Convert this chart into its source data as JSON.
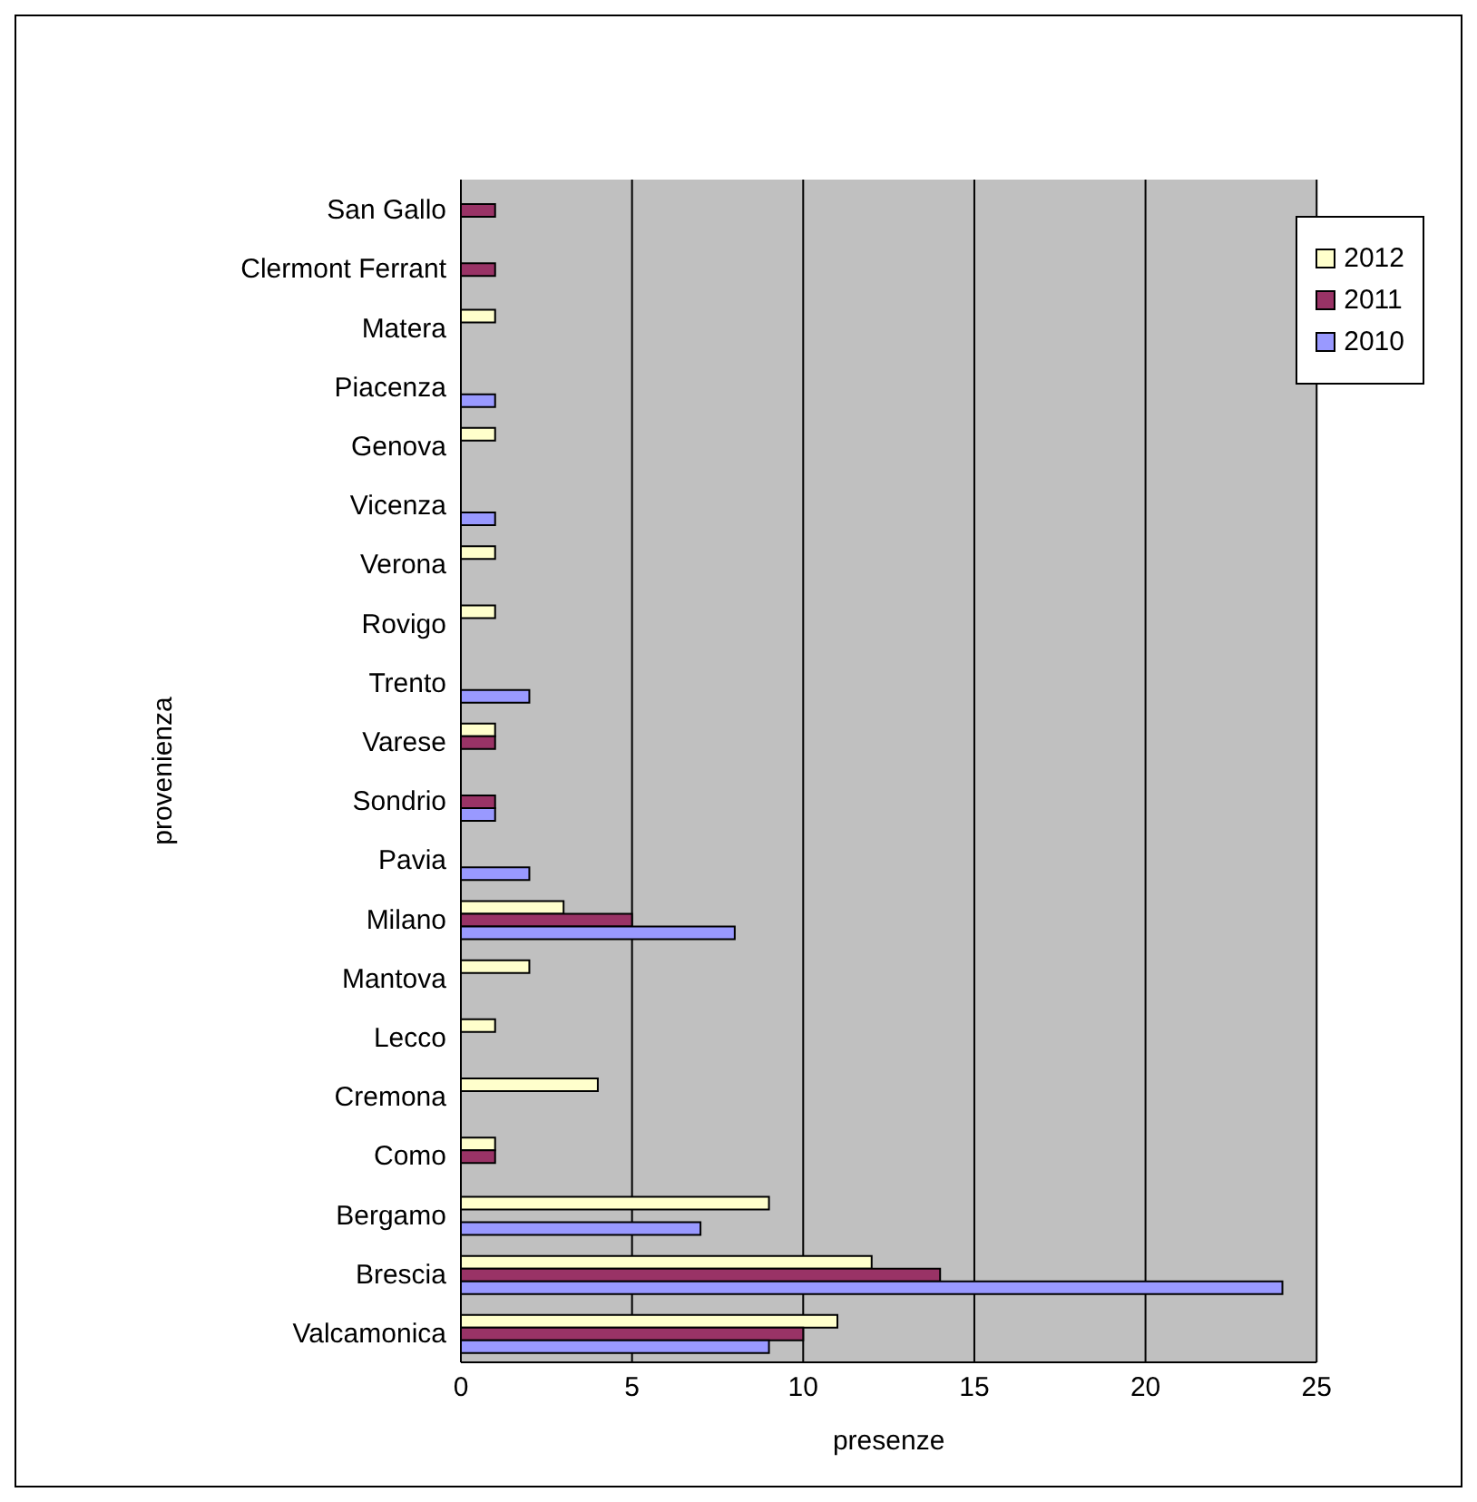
{
  "chart_data": {
    "type": "bar",
    "orientation": "horizontal",
    "xlabel": "presenze",
    "ylabel": "provenienza",
    "categories": [
      "San Gallo",
      "Clermont Ferrant",
      "Matera",
      "Piacenza",
      "Genova",
      "Vicenza",
      "Verona",
      "Rovigo",
      "Trento",
      "Varese",
      "Sondrio",
      "Pavia",
      "Milano",
      "Mantova",
      "Lecco",
      "Cremona",
      "Como",
      "Bergamo",
      "Brescia",
      "Valcamonica"
    ],
    "series": [
      {
        "name": "2012",
        "color": "#ffffcc",
        "values": [
          null,
          null,
          1,
          null,
          1,
          null,
          1,
          1,
          null,
          1,
          null,
          null,
          3,
          2,
          1,
          4,
          1,
          9,
          12,
          11
        ]
      },
      {
        "name": "2011",
        "color": "#993366",
        "values": [
          1,
          1,
          null,
          null,
          null,
          null,
          null,
          null,
          null,
          1,
          1,
          null,
          5,
          null,
          null,
          null,
          1,
          null,
          14,
          10
        ]
      },
      {
        "name": "2010",
        "color": "#9999ff",
        "values": [
          null,
          null,
          null,
          1,
          null,
          1,
          null,
          null,
          2,
          null,
          1,
          2,
          8,
          null,
          null,
          null,
          null,
          7,
          24,
          9
        ]
      }
    ],
    "xlim": [
      0,
      25
    ],
    "xticks": [
      0,
      5,
      10,
      15,
      20,
      25
    ],
    "grid": "x",
    "legend": "top right"
  }
}
